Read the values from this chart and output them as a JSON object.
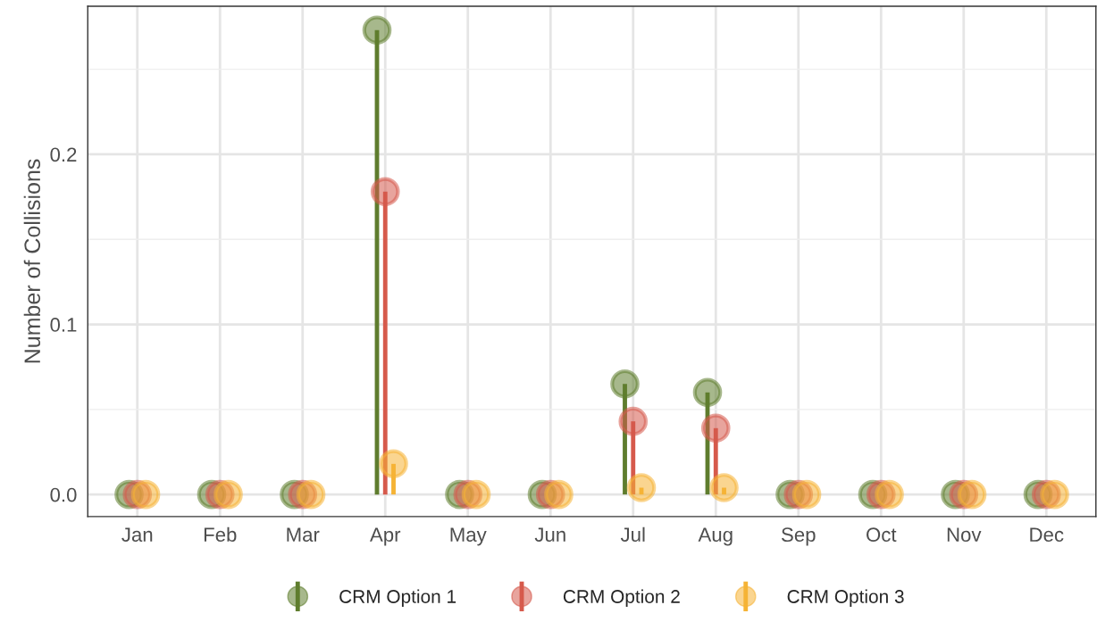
{
  "chart_data": {
    "type": "lollipop",
    "ylabel": "Number of Collisions",
    "categories": [
      "Jan",
      "Feb",
      "Mar",
      "Apr",
      "May",
      "Jun",
      "Jul",
      "Aug",
      "Sep",
      "Oct",
      "Nov",
      "Dec"
    ],
    "series": [
      {
        "name": "CRM Option 1",
        "color": "#5f7d2e",
        "values": [
          0,
          0,
          0,
          0.273,
          0,
          0,
          0.065,
          0.06,
          0,
          0,
          0,
          0
        ]
      },
      {
        "name": "CRM Option 2",
        "color": "#d65a4c",
        "values": [
          0,
          0,
          0,
          0.178,
          0,
          0,
          0.043,
          0.039,
          0,
          0,
          0,
          0
        ]
      },
      {
        "name": "CRM Option 3",
        "color": "#f5b335",
        "values": [
          0,
          0,
          0,
          0.018,
          0,
          0,
          0.004,
          0.004,
          0,
          0,
          0,
          0
        ]
      }
    ],
    "ylim": [
      -0.013,
      0.287
    ],
    "yticks": [
      {
        "value": 0,
        "label": "0.0"
      },
      {
        "value": 0.05,
        "label": null
      },
      {
        "value": 0.1,
        "label": "0.1"
      },
      {
        "value": 0.15,
        "label": null
      },
      {
        "value": 0.2,
        "label": "0.2"
      },
      {
        "value": 0.25,
        "label": null
      }
    ],
    "grid": true,
    "legend": "bottom",
    "marker": "circle",
    "line_style": "solid"
  }
}
